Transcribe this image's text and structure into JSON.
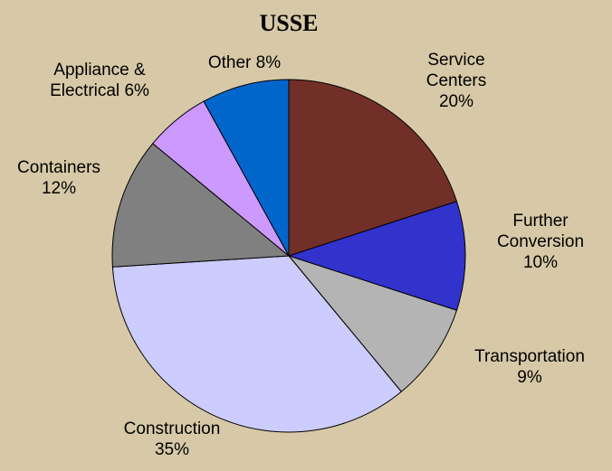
{
  "chart_data": {
    "type": "pie",
    "title": "USSE",
    "categories": [
      "Service Centers",
      "Further Conversion",
      "Transportation",
      "Construction",
      "Containers",
      "Appliance & Electrical",
      "Other"
    ],
    "values": [
      20,
      10,
      9,
      35,
      12,
      6,
      8
    ],
    "value_labels": [
      "20%",
      "10%",
      "9%",
      "35%",
      "12%",
      "6%",
      "8%"
    ],
    "colors": [
      "#722f28",
      "#3232cc",
      "#b4b4b4",
      "#ccccff",
      "#808080",
      "#cc99ff",
      "#0066cc"
    ]
  }
}
